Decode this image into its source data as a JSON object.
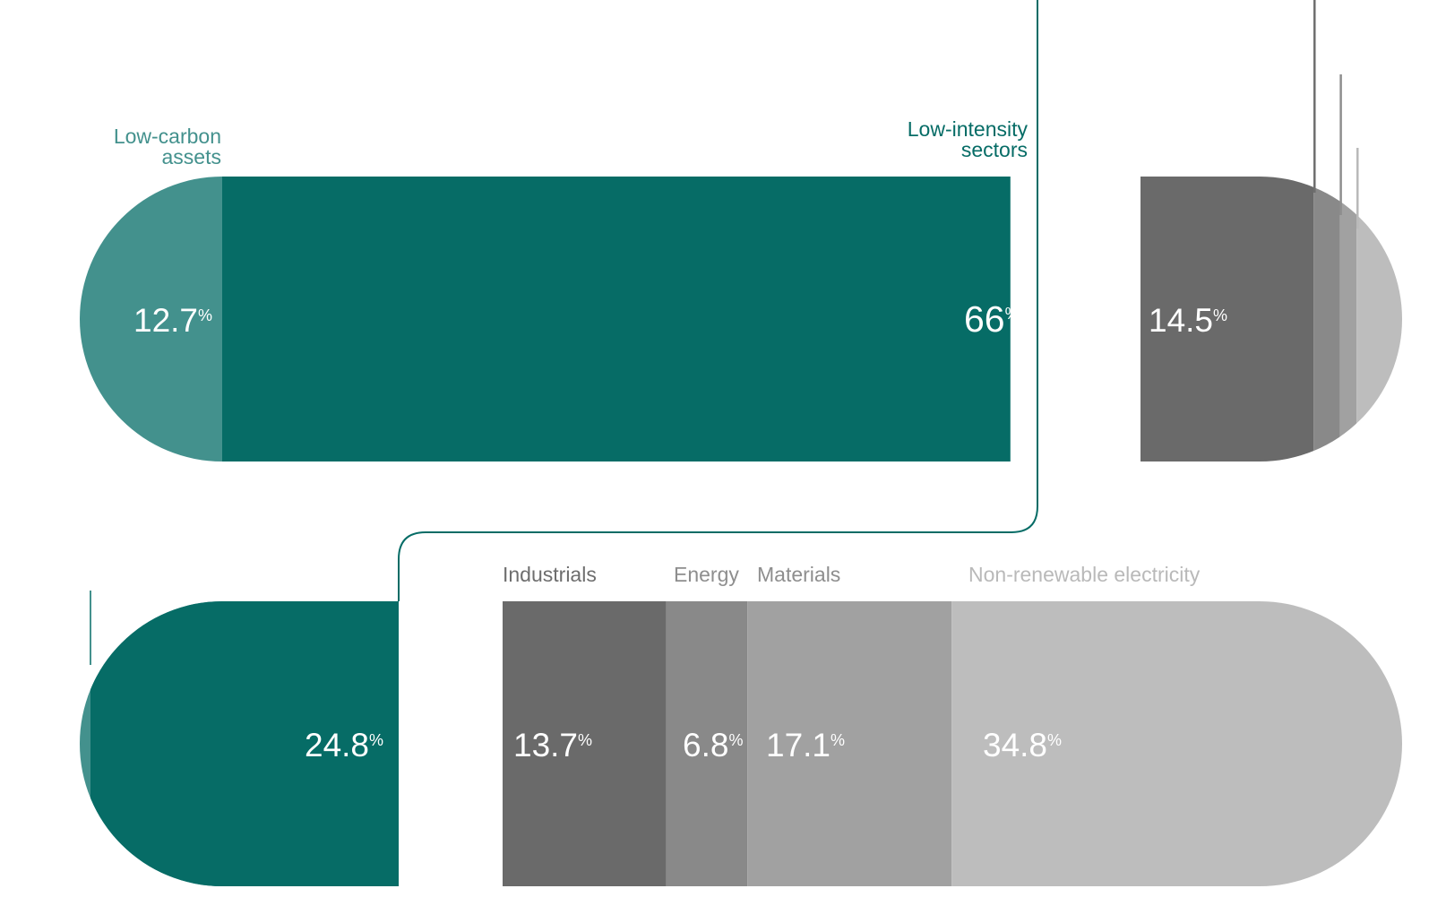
{
  "chart_data": {
    "type": "bar",
    "colors": {
      "teal_dark": "#066c66",
      "teal_light": "#43918d",
      "grey_1": "#6a6a6a",
      "grey_2": "#898989",
      "grey_3": "#a1a1a1",
      "grey_4": "#bdbdbd",
      "grey_text_1": "#6e6e6e",
      "grey_text_2": "#8e8e8e",
      "grey_text_3": "#a0a0a0",
      "grey_text_4": "#b9b9b9"
    },
    "percent_sign": "%",
    "top_bar": {
      "segments": [
        {
          "label": "Low-carbon assets",
          "label_lines": [
            "Low-carbon",
            "assets"
          ],
          "value": 12.7,
          "display": "12.7",
          "color": "teal_light"
        },
        {
          "label": "Low-intensity sectors",
          "label_lines": [
            "Low-intensity",
            "sectors"
          ],
          "value": 66,
          "display": "66",
          "color": "teal_dark"
        },
        {
          "label": "",
          "value": 14.5,
          "display": "14.5",
          "color": "grey_1"
        },
        {
          "label": "",
          "value": 2.2,
          "display": "2.2",
          "color": "grey_2"
        },
        {
          "label": "",
          "value": 1.4,
          "display": "1.4",
          "color": "grey_3"
        },
        {
          "label": "",
          "value": 3.2,
          "display": "3.2",
          "color": "grey_4"
        }
      ]
    },
    "bottom_bar": {
      "segments": [
        {
          "label": "",
          "value": 2.8,
          "display": "2.8",
          "color": "teal_light"
        },
        {
          "label": "",
          "value": 24.8,
          "display": "24.8",
          "color": "teal_dark"
        },
        {
          "label": "Industrials",
          "value": 13.7,
          "display": "13.7",
          "color": "grey_1"
        },
        {
          "label": "Energy",
          "value": 6.8,
          "display": "6.8",
          "color": "grey_2"
        },
        {
          "label": "Materials",
          "value": 17.1,
          "display": "17.1",
          "color": "grey_3"
        },
        {
          "label": "Non-renewable electricity",
          "value": 34.8,
          "display": "34.8",
          "color": "grey_4"
        }
      ]
    }
  }
}
